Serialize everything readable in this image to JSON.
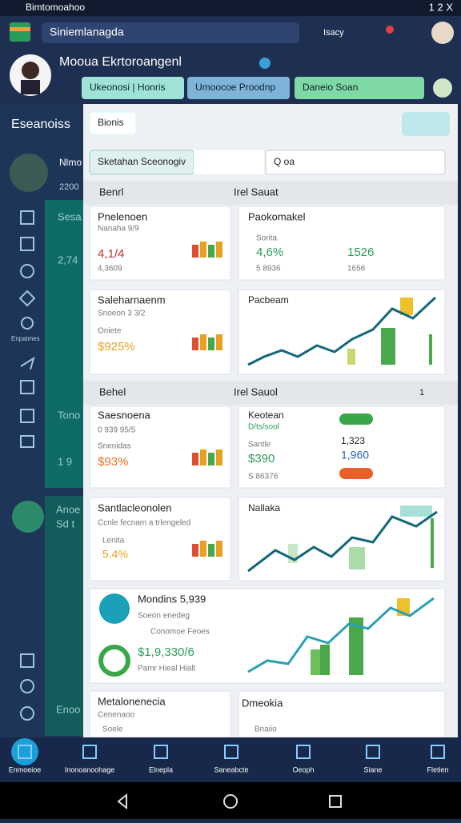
{
  "status_bar": {
    "app_name": "Bimtomoahoo",
    "time": "1 2 X"
  },
  "app_bar": {
    "search": "Siniemlanagda",
    "action": "Isacy"
  },
  "profile": {
    "name": "Mooua Ekrtoroangenl",
    "tabs": [
      "Ukeonosi | Honris",
      "Umoocoe Proodnp",
      "Daneio Soan"
    ]
  },
  "sidebar": {
    "title": "Eseanoiss",
    "card_title": "Nlmo",
    "card_value": "2200",
    "icon_label": "Enpaimes"
  },
  "background_cards": [
    "Sesa",
    "2,74",
    "Tono",
    "1 9",
    "Anoe",
    "Sd t",
    "Enoo"
  ],
  "panel": {
    "button": "Bionis",
    "dropdown": "Sketahan Sceonogiv",
    "search": "Q oa"
  },
  "section_1": {
    "left": "Benrl",
    "right": "Irel Sauat"
  },
  "section_2": {
    "left": "Behel",
    "right": "Irel Sauol",
    "badge": "1"
  },
  "cards": [
    {
      "title": "Pnelenoen",
      "subtitle": "Nanaha 9/9",
      "value": "4,1/4",
      "note": "4,3609"
    },
    {
      "title": "Paokomakel",
      "subtitle": "Sorita",
      "value": "4,6%",
      "note": "5 8936",
      "side_value": "1526",
      "side_note": "1656"
    },
    {
      "title": "Saleharnaenm",
      "subtitle": "Snoeon 3 3/2",
      "label": "Oniete",
      "value": "$925%"
    },
    {
      "title": "Pacbeam"
    },
    {
      "title": "Saesnoena",
      "subtitle": "0 939 95/5",
      "label": "Snenidas",
      "value": "$93%"
    },
    {
      "title": "Keotean",
      "subtitle": "D/ts/sool",
      "label": "Santle",
      "value": "$390",
      "side_value": "1,323",
      "side_note": "1,960",
      "note": "S 86376"
    },
    {
      "title": "Santlacleonolen",
      "subtitle": "Ccnle fecnam a trlengeled",
      "label": "Lenita",
      "value": "5.4%"
    },
    {
      "title": "Nallaka"
    },
    {
      "title": "Mondins 5,939",
      "subtitle": "Soeon enedeg",
      "label": "Conomoe Feoes",
      "value": "$1,9,330/6",
      "note": "Pamr Hieal Hialt"
    },
    {
      "title": "Metalonenecia",
      "subtitle": "Cenenaoo",
      "label": "Soele"
    },
    {
      "title": "Dmeokia",
      "label": "Bnaiio"
    }
  ],
  "bottom_nav": [
    "Enmoeioe",
    "Inonoanoohage",
    "Elnepla",
    "Saneabcte",
    "Oeoph",
    "Siane",
    "Fletien"
  ]
}
